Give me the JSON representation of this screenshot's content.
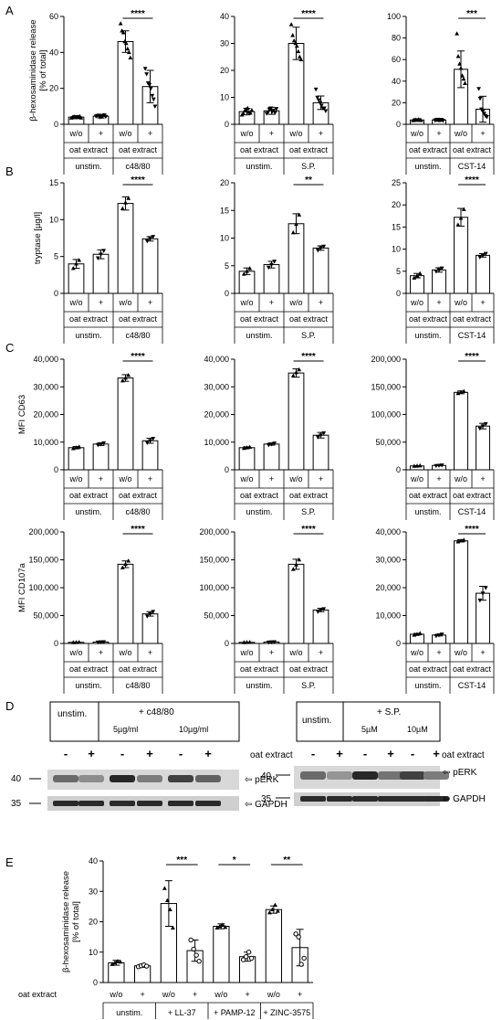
{
  "panel_labels": [
    "A",
    "B",
    "C",
    "D",
    "E"
  ],
  "chart_data": [
    {
      "type": "bar",
      "ylabel": "β-hexosaminidase release\n[% of total]",
      "ylim": [
        0,
        60
      ],
      "yticks": [
        0,
        20,
        40,
        60
      ],
      "stimulus": "c48/80",
      "values": [
        4,
        4.5,
        46,
        21
      ],
      "errors": [
        0.8,
        1,
        6,
        9
      ],
      "significance": "****",
      "points": [
        [
          3.5,
          4,
          4.2,
          3.8,
          3.9,
          4.1,
          4.4,
          3.6
        ],
        [
          4.5,
          4.8,
          5,
          4,
          4.2,
          4.7,
          5.2,
          4.3
        ],
        [
          56,
          52,
          51,
          46,
          45,
          42,
          40,
          37
        ],
        [
          31,
          28,
          23,
          22,
          20,
          16,
          14,
          10
        ]
      ]
    },
    {
      "type": "bar",
      "ylabel": "",
      "ylim": [
        0,
        40
      ],
      "yticks": [
        0,
        10,
        20,
        30,
        40
      ],
      "stimulus": "S.P.",
      "values": [
        4.7,
        5,
        30,
        8
      ],
      "errors": [
        1.2,
        1.3,
        6,
        2.5
      ],
      "significance": "****",
      "points": [
        [
          3.5,
          4,
          5,
          5.5,
          6,
          4.5,
          4.2,
          5.2
        ],
        [
          4,
          4.5,
          5.5,
          6,
          4.8,
          5.2,
          4.3,
          5.8
        ],
        [
          37,
          33,
          31,
          30,
          29,
          27,
          25,
          24
        ],
        [
          13,
          10,
          9,
          8,
          7,
          6,
          6,
          5
        ]
      ]
    },
    {
      "type": "bar",
      "ylabel": "",
      "ylim": [
        0,
        100
      ],
      "yticks": [
        0,
        20,
        40,
        60,
        80,
        100
      ],
      "stimulus": "CST-14",
      "values": [
        4,
        4,
        51,
        14
      ],
      "errors": [
        1,
        1.2,
        17,
        12
      ],
      "significance": "***",
      "points": [
        [
          3.5,
          4,
          4.2,
          3.8,
          4.5,
          4.1,
          3.6
        ],
        [
          3.8,
          4.2,
          4.5,
          3.6,
          4,
          4.4,
          3.5
        ],
        [
          84,
          63,
          56,
          52,
          45,
          42,
          38
        ],
        [
          33,
          24,
          14,
          12,
          10,
          8,
          7
        ]
      ]
    },
    {
      "type": "bar",
      "ylabel": "tryptase [µg/l]",
      "ylim": [
        0,
        15
      ],
      "yticks": [
        0,
        5,
        10,
        15
      ],
      "stimulus": "c48/80",
      "values": [
        4,
        5.3,
        12.2,
        7.4
      ],
      "errors": [
        0.6,
        0.6,
        0.9,
        0.3
      ],
      "significance": "****",
      "points": [
        [
          3.4,
          4,
          4.5
        ],
        [
          4.8,
          5.3,
          5.8
        ],
        [
          11.5,
          12.3,
          12.9
        ],
        [
          7.1,
          7.4,
          7.7
        ]
      ]
    },
    {
      "type": "bar",
      "ylabel": "",
      "ylim": [
        0,
        20
      ],
      "yticks": [
        0,
        5,
        10,
        15,
        20
      ],
      "stimulus": "S.P.",
      "values": [
        4,
        5.2,
        12.6,
        8.2
      ],
      "errors": [
        0.6,
        0.6,
        1.8,
        0.4
      ],
      "significance": "**",
      "points": [
        [
          3.5,
          4,
          4.5
        ],
        [
          4.7,
          5.2,
          5.8
        ],
        [
          11,
          12.5,
          14.2
        ],
        [
          7.8,
          8.2,
          8.5
        ]
      ]
    },
    {
      "type": "bar",
      "ylabel": "",
      "ylim": [
        0,
        25
      ],
      "yticks": [
        0,
        5,
        10,
        15,
        20,
        25
      ],
      "stimulus": "CST-14",
      "values": [
        4,
        5.3,
        17.2,
        8.6
      ],
      "errors": [
        0.5,
        0.5,
        2,
        0.4
      ],
      "significance": "****",
      "points": [
        [
          3.5,
          4,
          4.5
        ],
        [
          5,
          5.3,
          5.7
        ],
        [
          15.5,
          17,
          19
        ],
        [
          8.2,
          8.6,
          9
        ]
      ]
    },
    {
      "type": "bar",
      "ylabel": "MFI CD63",
      "ylim": [
        0,
        40000
      ],
      "yticks": [
        0,
        10000,
        20000,
        30000,
        40000
      ],
      "ytick_labels": [
        "0",
        "10,000",
        "20,000",
        "30,000",
        "40,000"
      ],
      "stimulus": "c48/80",
      "values": [
        8000,
        9300,
        33200,
        10500
      ],
      "errors": [
        400,
        500,
        1200,
        900
      ],
      "significance": "****",
      "points": [
        [
          7700,
          8000,
          8300
        ],
        [
          9000,
          9300,
          9700
        ],
        [
          32200,
          33200,
          34200
        ],
        [
          9800,
          10500,
          11300
        ]
      ]
    },
    {
      "type": "bar",
      "ylabel": "",
      "ylim": [
        0,
        40000
      ],
      "yticks": [
        0,
        10000,
        20000,
        30000,
        40000
      ],
      "ytick_labels": [
        "0",
        "10,000",
        "20,000",
        "30,000",
        "40,000"
      ],
      "stimulus": "S.P.",
      "values": [
        8000,
        9300,
        35000,
        12500
      ],
      "errors": [
        300,
        400,
        1500,
        1000
      ],
      "significance": "****",
      "points": [
        [
          7800,
          8000,
          8200
        ],
        [
          9000,
          9300,
          9600
        ],
        [
          34000,
          35200,
          36200
        ],
        [
          11800,
          12500,
          13300
        ]
      ]
    },
    {
      "type": "bar",
      "ylabel": "",
      "ylim": [
        0,
        200000
      ],
      "yticks": [
        0,
        50000,
        100000,
        150000,
        200000
      ],
      "ytick_labels": [
        "0",
        "50,000",
        "100,000",
        "150,000",
        "200,000"
      ],
      "stimulus": "CST-14",
      "values": [
        7000,
        7800,
        140000,
        79000
      ],
      "errors": [
        500,
        600,
        2500,
        5000
      ],
      "significance": "****",
      "points": [
        [
          6600,
          7000,
          7400
        ],
        [
          7300,
          7800,
          8300
        ],
        [
          138000,
          140500,
          142000
        ],
        [
          75000,
          79000,
          83000
        ]
      ]
    },
    {
      "type": "bar",
      "ylabel": "MFI CD107a",
      "ylim": [
        0,
        200000
      ],
      "yticks": [
        0,
        50000,
        100000,
        150000,
        200000
      ],
      "ytick_labels": [
        "0",
        "50,000",
        "100,000",
        "150,000",
        "200,000"
      ],
      "stimulus": "c48/80",
      "values": [
        2000,
        2500,
        142000,
        53000
      ],
      "errors": [
        400,
        400,
        6000,
        4000
      ],
      "significance": "****",
      "points": [
        [
          1800,
          2000,
          2200
        ],
        [
          2200,
          2500,
          2800
        ],
        [
          136000,
          142000,
          148000
        ],
        [
          49000,
          53000,
          57000
        ]
      ]
    },
    {
      "type": "bar",
      "ylabel": "",
      "ylim": [
        0,
        200000
      ],
      "yticks": [
        0,
        50000,
        100000,
        150000,
        200000
      ],
      "ytick_labels": [
        "0",
        "50,000",
        "100,000",
        "150,000",
        "200,000"
      ],
      "stimulus": "S.P.",
      "values": [
        2000,
        2500,
        142000,
        60000
      ],
      "errors": [
        400,
        400,
        9000,
        3000
      ],
      "significance": "****",
      "points": [
        [
          1800,
          2000,
          2200
        ],
        [
          2200,
          2500,
          2800
        ],
        [
          133000,
          141000,
          150000
        ],
        [
          57000,
          60000,
          62000
        ]
      ]
    },
    {
      "type": "bar",
      "ylabel": "",
      "ylim": [
        0,
        40000
      ],
      "yticks": [
        0,
        10000,
        20000,
        30000,
        40000
      ],
      "ytick_labels": [
        "0",
        "10,000",
        "20,000",
        "30,000",
        "40,000"
      ],
      "stimulus": "CST-14",
      "values": [
        3300,
        3000,
        36800,
        18000
      ],
      "errors": [
        300,
        300,
        400,
        2500
      ],
      "significance": "****",
      "points": [
        [
          3000,
          3300,
          3600
        ],
        [
          2700,
          3000,
          3300
        ],
        [
          36500,
          36800,
          37100
        ],
        [
          15500,
          18000,
          20000
        ]
      ]
    },
    {
      "type": "bar",
      "ylabel": "β-hexosaminidase release\n[% of total]",
      "ylim": [
        0,
        40
      ],
      "yticks": [
        0,
        10,
        20,
        30,
        40
      ],
      "groups": [
        "unstim.",
        "+ LL-37",
        "+ PAMP-12",
        "+ ZINC-3575"
      ],
      "oat_extract_row": "oat extract",
      "values": [
        6.5,
        5.5,
        26,
        10.5,
        18.5,
        8.5,
        24,
        11.5
      ],
      "errors": [
        0.8,
        0.5,
        7.5,
        3.5,
        0.8,
        1.5,
        1.2,
        6
      ],
      "significance": [
        {
          "pair": 1,
          "label": "***"
        },
        {
          "pair": 2,
          "label": "*"
        },
        {
          "pair": 3,
          "label": "**"
        }
      ],
      "points": [
        [
          6,
          6.5,
          7,
          6.8
        ],
        [
          5.2,
          5.5,
          5.8,
          5.4
        ],
        [
          31,
          27,
          24,
          18
        ],
        [
          14,
          11,
          9,
          7
        ],
        [
          18,
          18.5,
          19,
          18.2
        ],
        [
          7.5,
          8.5,
          10,
          8
        ],
        [
          23,
          24,
          25.5,
          23.5
        ],
        [
          16,
          15,
          6,
          8
        ]
      ]
    }
  ],
  "conditions": {
    "wo": "w/o",
    "plus": "+",
    "oat": "oat extract",
    "unstim": "unstim."
  },
  "western_d1": {
    "header_unstim": "unstim.",
    "header_stim": "+ c48/80",
    "dose1": "5µg/ml",
    "dose2": "10µg/ml",
    "oat": "oat extract",
    "signs": [
      "-",
      "+",
      "-",
      "+",
      "-",
      "+"
    ],
    "mw_top": "40",
    "mw_bottom": "35",
    "band_top": "⇦ pERK",
    "band_bottom": "⇦ GAPDH"
  },
  "western_d2": {
    "header_unstim": "unstim.",
    "header_stim": "+ S.P.",
    "dose1": "5µM",
    "dose2": "10µM",
    "oat": "oat extract",
    "signs": [
      "-",
      "+",
      "-",
      "+",
      "-",
      "+"
    ],
    "mw_top": "40",
    "mw_bottom": "35",
    "band_top": "⇦ pERK",
    "band_bottom": "⇦ GAPDH"
  }
}
